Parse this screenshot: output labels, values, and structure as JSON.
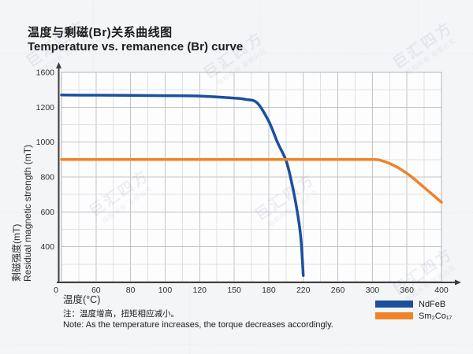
{
  "header": {
    "title_zh": "温度与剩磁(Br)关系曲线图",
    "title_en": "Temperature vs. remanence (Br) curve"
  },
  "axes": {
    "y_label_zh": "剩磁强度(mT)",
    "y_label_en": "Residual magnetic strength (mT)",
    "x_label": "温度(°C)"
  },
  "note": {
    "line_zh": "注：温度增高，扭矩相应减小。",
    "line_en": "Note: As the temperature increases, the torque decreases accordingly."
  },
  "legend": {
    "items": [
      {
        "label": "NdFeB",
        "color": "#1b4f9e"
      },
      {
        "label": "Sm₂Co₁₇",
        "color": "#ef8329"
      }
    ]
  },
  "watermark": {
    "logo": "巨汇四方",
    "notice": "版权所有 盗图必究"
  },
  "chart_data": {
    "type": "line",
    "title": "Temperature vs. remanence (Br) curve",
    "xlabel": "温度(°C)",
    "ylabel": "Residual magnetic strength (mT)",
    "x_ticks": [
      0,
      60,
      80,
      100,
      120,
      150,
      180,
      220,
      260,
      300,
      360,
      400
    ],
    "y_ticks": [
      0,
      400,
      600,
      800,
      1000,
      1200,
      1600
    ],
    "axis_note": "ticks equally spaced, non-linear value steps; minor gridline at each half-step",
    "grid": "on",
    "legend_position": "bottom-right",
    "series": [
      {
        "name": "NdFeB",
        "color": "#1b4f9e",
        "points": [
          [
            0,
            1340
          ],
          [
            60,
            1338
          ],
          [
            80,
            1336
          ],
          [
            100,
            1333
          ],
          [
            120,
            1328
          ],
          [
            150,
            1305
          ],
          [
            160,
            1290
          ],
          [
            170,
            1250
          ],
          [
            180,
            1120
          ],
          [
            190,
            1000
          ],
          [
            200,
            895
          ],
          [
            206,
            780
          ],
          [
            212,
            630
          ],
          [
            217,
            460
          ],
          [
            220,
            70
          ]
        ]
      },
      {
        "name": "Sm₂Co₁₇",
        "color": "#ef8329",
        "points": [
          [
            0,
            900
          ],
          [
            60,
            900
          ],
          [
            80,
            900
          ],
          [
            100,
            900
          ],
          [
            120,
            900
          ],
          [
            150,
            900
          ],
          [
            180,
            900
          ],
          [
            220,
            900
          ],
          [
            260,
            900
          ],
          [
            300,
            900
          ],
          [
            315,
            895
          ],
          [
            340,
            862
          ],
          [
            363,
            810
          ],
          [
            387,
            710
          ],
          [
            400,
            655
          ]
        ]
      }
    ]
  }
}
